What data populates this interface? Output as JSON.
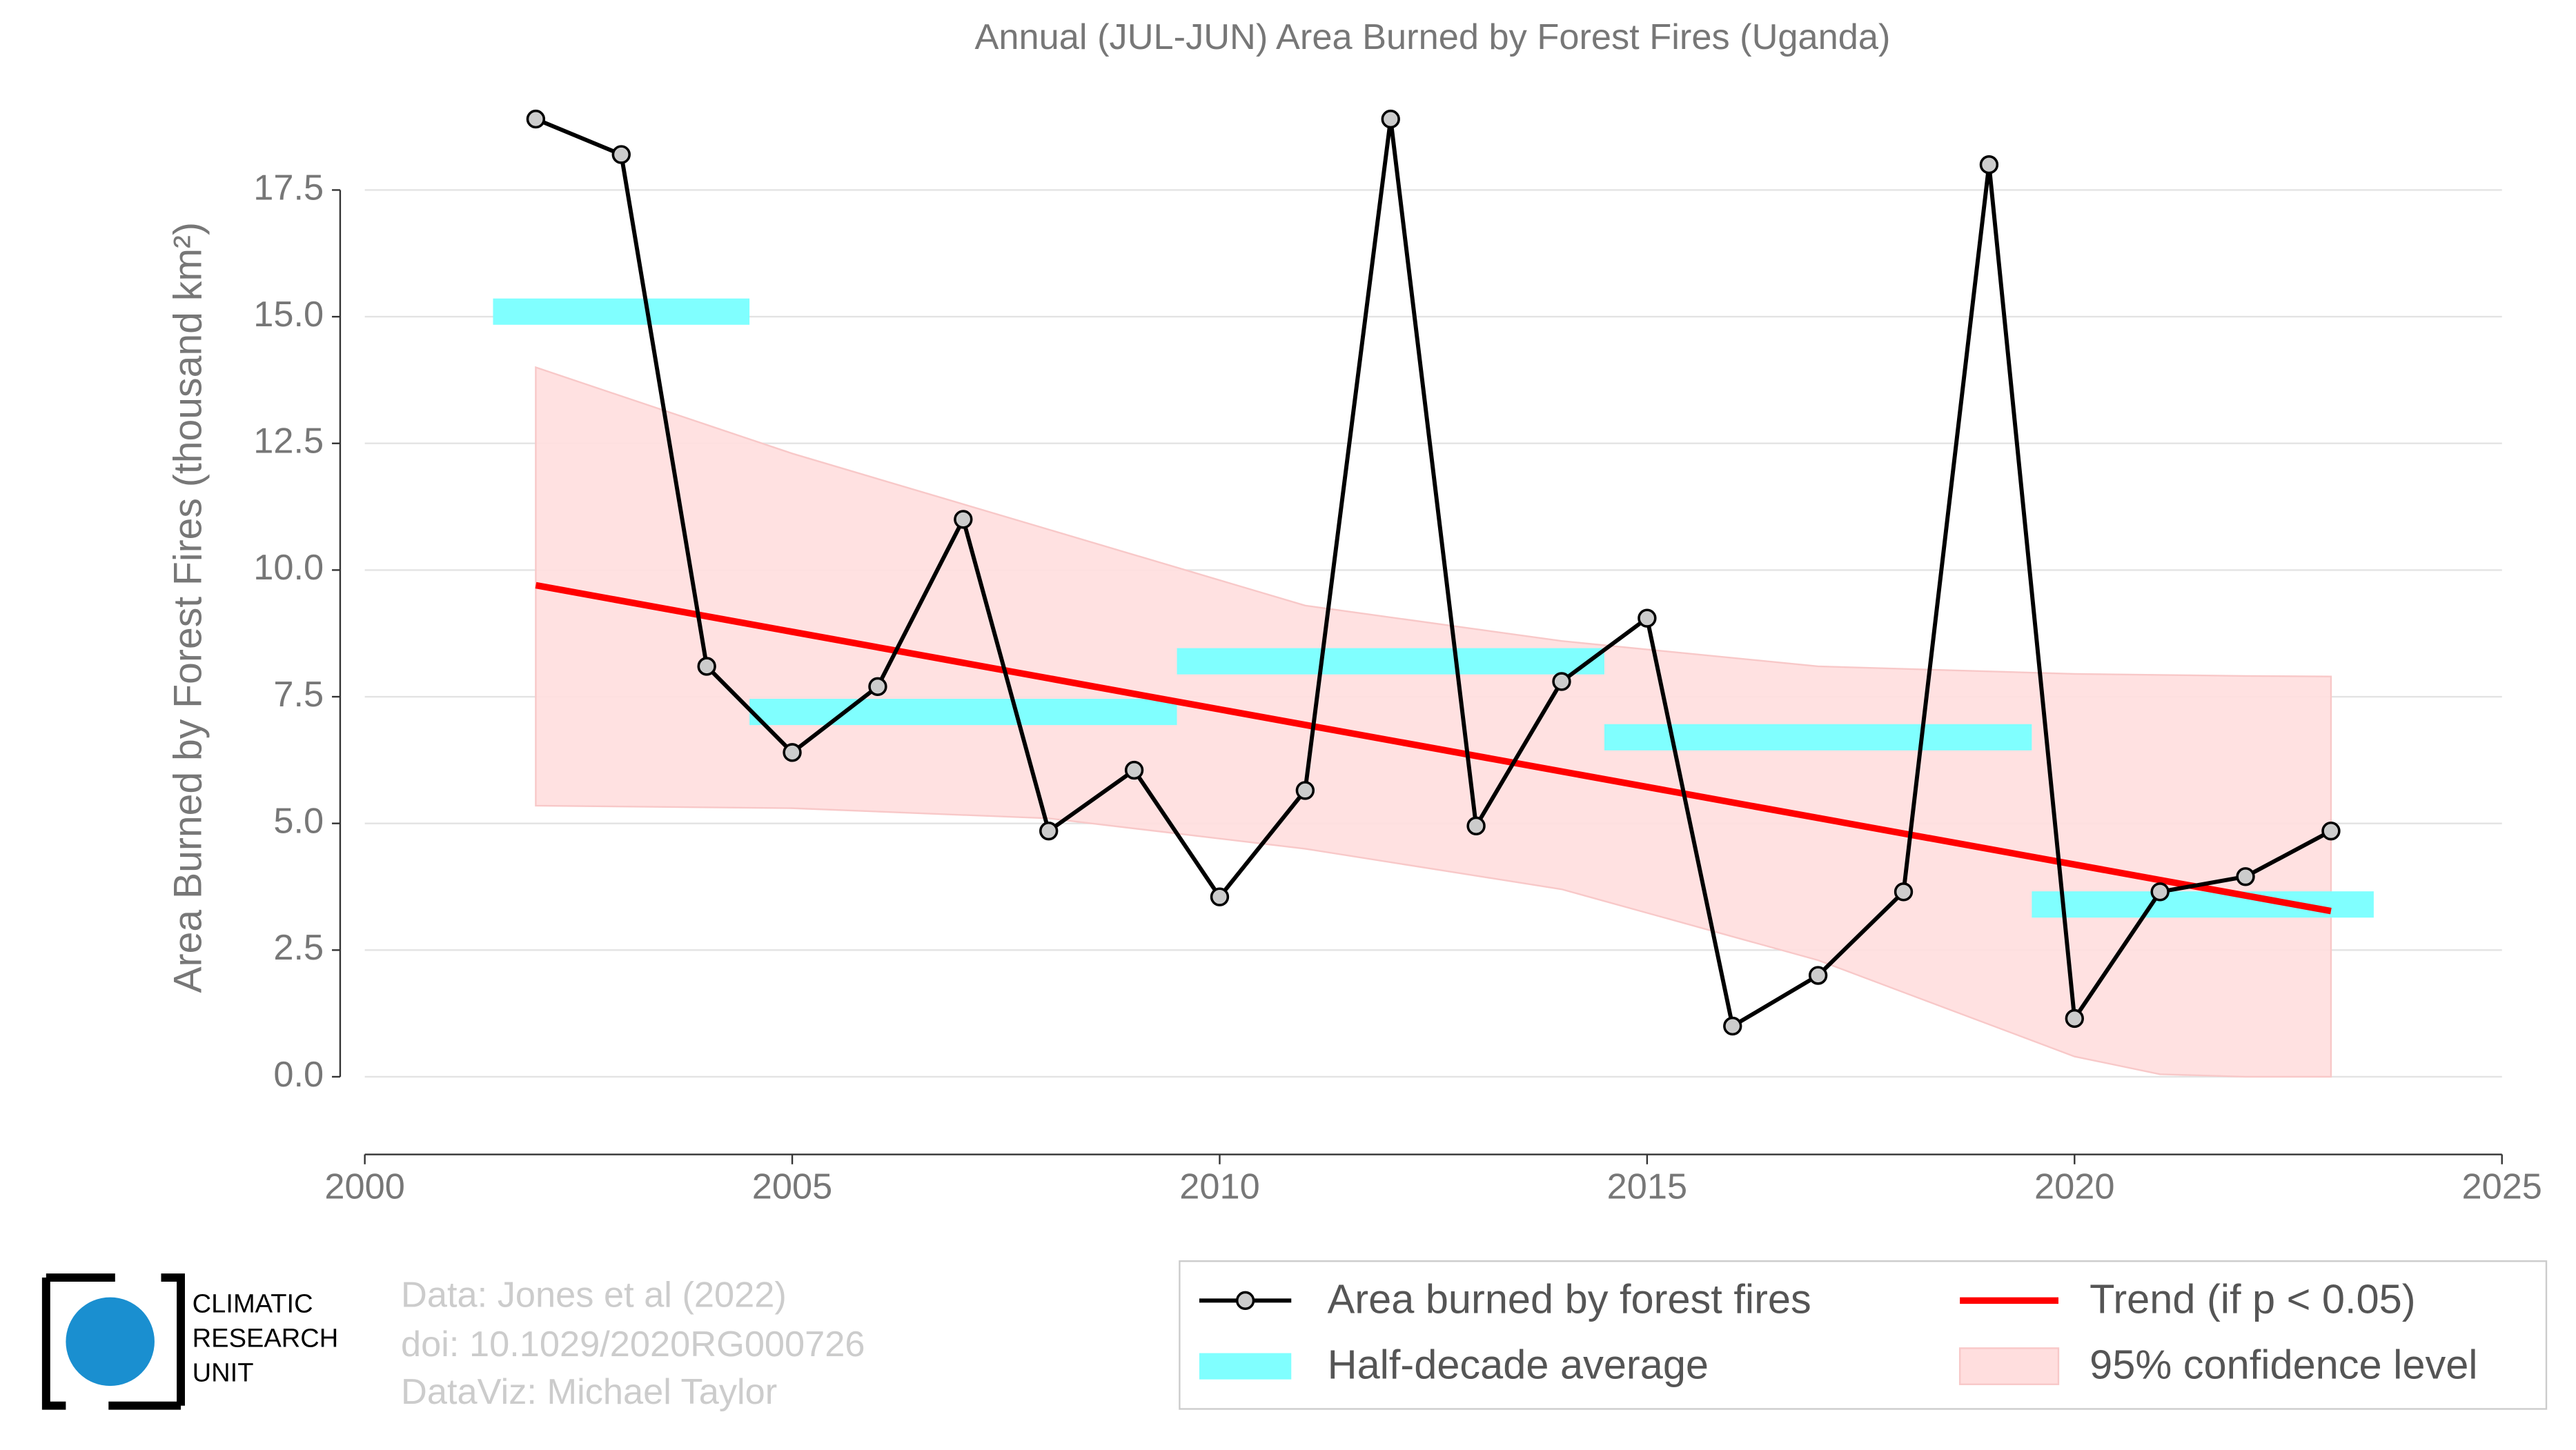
{
  "chart_data": {
    "type": "line",
    "title": "Annual (JUL-JUN) Area Burned by Forest Fires (Uganda)",
    "ylabel": "Area Burned by Forest Fires (thousand km²)",
    "xlim": [
      2000,
      2025
    ],
    "ylim": [
      -1.5,
      19.5
    ],
    "xticks": [
      2000,
      2005,
      2010,
      2015,
      2020,
      2025
    ],
    "yticks": [
      {
        "value": 0,
        "label": "0.0"
      },
      2.5,
      {
        "value": 5,
        "label": "5.0"
      },
      7.5,
      {
        "value": 10,
        "label": "10.0"
      },
      12.5,
      {
        "value": 15,
        "label": "15.0"
      },
      17.5
    ],
    "grid": true,
    "confidence": {
      "name": "95% confidence level",
      "color": "#ffdede",
      "x": [
        2002,
        2005,
        2008,
        2011,
        2014,
        2017,
        2020,
        2021,
        2022,
        2023
      ],
      "upper": [
        14.0,
        12.3,
        10.8,
        9.3,
        8.6,
        8.1,
        7.95,
        7.93,
        7.91,
        7.9
      ],
      "lower": [
        5.35,
        5.3,
        5.1,
        4.5,
        3.7,
        2.3,
        0.4,
        0.05,
        0,
        0
      ]
    },
    "half_decade": {
      "name": "Half-decade average",
      "color": "#80ffff",
      "starts": [
        2001.5,
        2004.5,
        2009.5,
        2014.5,
        2019.5
      ],
      "ends": [
        2004.5,
        2009.5,
        2014.5,
        2019.5,
        2023.5
      ],
      "values": [
        15.1,
        7.2,
        8.2,
        6.7,
        3.4
      ]
    },
    "series": [
      {
        "name": "Area burned by forest fires",
        "color": "#000000",
        "x": [
          2002,
          2003,
          2004,
          2005,
          2006,
          2007,
          2008,
          2009,
          2010,
          2011,
          2012,
          2013,
          2014,
          2015,
          2016,
          2017,
          2018,
          2019,
          2020,
          2021,
          2022,
          2023
        ],
        "values": [
          18.9,
          18.2,
          8.1,
          6.4,
          7.7,
          11.0,
          4.85,
          6.05,
          3.55,
          5.65,
          18.9,
          4.95,
          7.8,
          9.05,
          1.0,
          2.0,
          3.65,
          18.0,
          1.15,
          3.65,
          3.95,
          4.85
        ]
      },
      {
        "name": "Trend (if p < 0.05)",
        "color": "#ff0000",
        "x": [
          2002,
          2023
        ],
        "values": [
          9.7,
          3.27
        ]
      }
    ]
  },
  "footer": {
    "source": [
      "Data: Jones et al (2022)",
      "doi: 10.1029/2020RG000726",
      "DataViz: Michael Taylor"
    ],
    "logo": [
      "CLIMATIC",
      "RESEARCH",
      "UNIT"
    ]
  }
}
